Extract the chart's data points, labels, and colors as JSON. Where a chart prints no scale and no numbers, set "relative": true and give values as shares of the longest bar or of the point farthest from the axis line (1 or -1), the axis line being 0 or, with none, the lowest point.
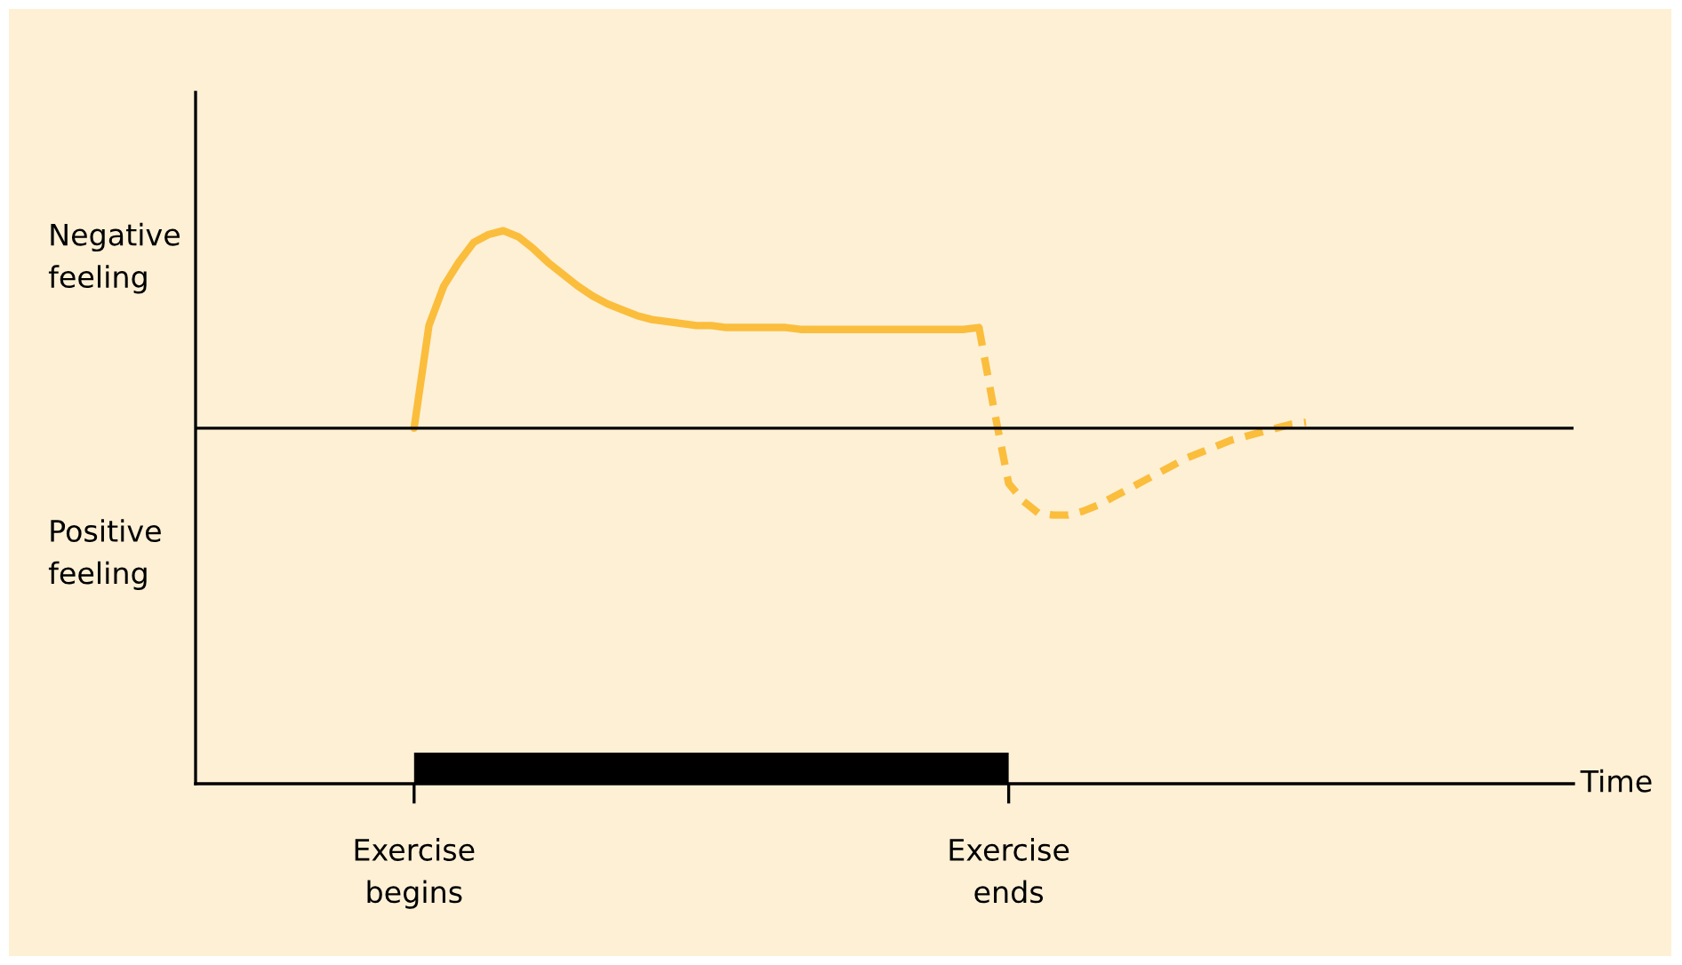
{
  "chart_data": {
    "type": "line",
    "relative": true,
    "categories": [
      "Exercise\nbegins",
      null,
      null,
      null,
      null,
      null,
      null,
      null,
      null,
      null,
      null,
      null,
      null,
      null,
      null,
      null,
      null,
      null,
      null,
      null,
      null,
      null,
      null,
      null,
      null,
      null,
      null,
      null,
      null,
      null,
      null,
      null,
      null,
      null,
      null,
      null,
      null,
      null,
      null,
      null,
      "Exercise\nends",
      null,
      null,
      null,
      null,
      null,
      null,
      null,
      null,
      null,
      null,
      null,
      null,
      null,
      null,
      null,
      null,
      null,
      null,
      null,
      null
    ],
    "annotations": [
      "Negative\nfeeling",
      "Positive\nfeeling",
      "Time"
    ],
    "series": [
      {
        "color": "#fbbd3c",
        "line_style": "solid",
        "values": [
          0,
          0.52,
          0.72,
          0.84,
          0.94,
          0.98,
          1.0,
          0.97,
          0.91,
          0.84,
          0.78,
          0.72,
          0.67,
          0.63,
          0.6,
          0.57,
          0.55,
          0.54,
          0.53,
          0.52,
          0.52,
          0.51,
          0.51,
          0.51,
          0.51,
          0.51,
          0.5,
          0.5,
          0.5,
          0.5,
          0.5,
          0.5,
          0.5,
          0.5,
          0.5,
          0.5,
          0.5,
          0.5,
          0.51,
          null,
          null,
          null,
          null,
          null,
          null,
          null,
          null,
          null,
          null,
          null,
          null,
          null,
          null,
          null,
          null,
          null,
          null,
          null,
          null,
          null,
          null
        ]
      },
      {
        "color": "#fbbd3c",
        "line_style": "dashed",
        "values": [
          null,
          null,
          null,
          null,
          null,
          null,
          null,
          null,
          null,
          null,
          null,
          null,
          null,
          null,
          null,
          null,
          null,
          null,
          null,
          null,
          null,
          null,
          null,
          null,
          null,
          null,
          null,
          null,
          null,
          null,
          null,
          null,
          null,
          null,
          null,
          null,
          null,
          null,
          0.51,
          0.1,
          -0.28,
          -0.37,
          -0.43,
          -0.44,
          -0.44,
          -0.42,
          -0.39,
          -0.35,
          -0.31,
          -0.27,
          -0.23,
          -0.19,
          -0.15,
          -0.12,
          -0.09,
          -0.06,
          -0.04,
          -0.02,
          0.0,
          0.02,
          0.03
        ]
      }
    ]
  }
}
